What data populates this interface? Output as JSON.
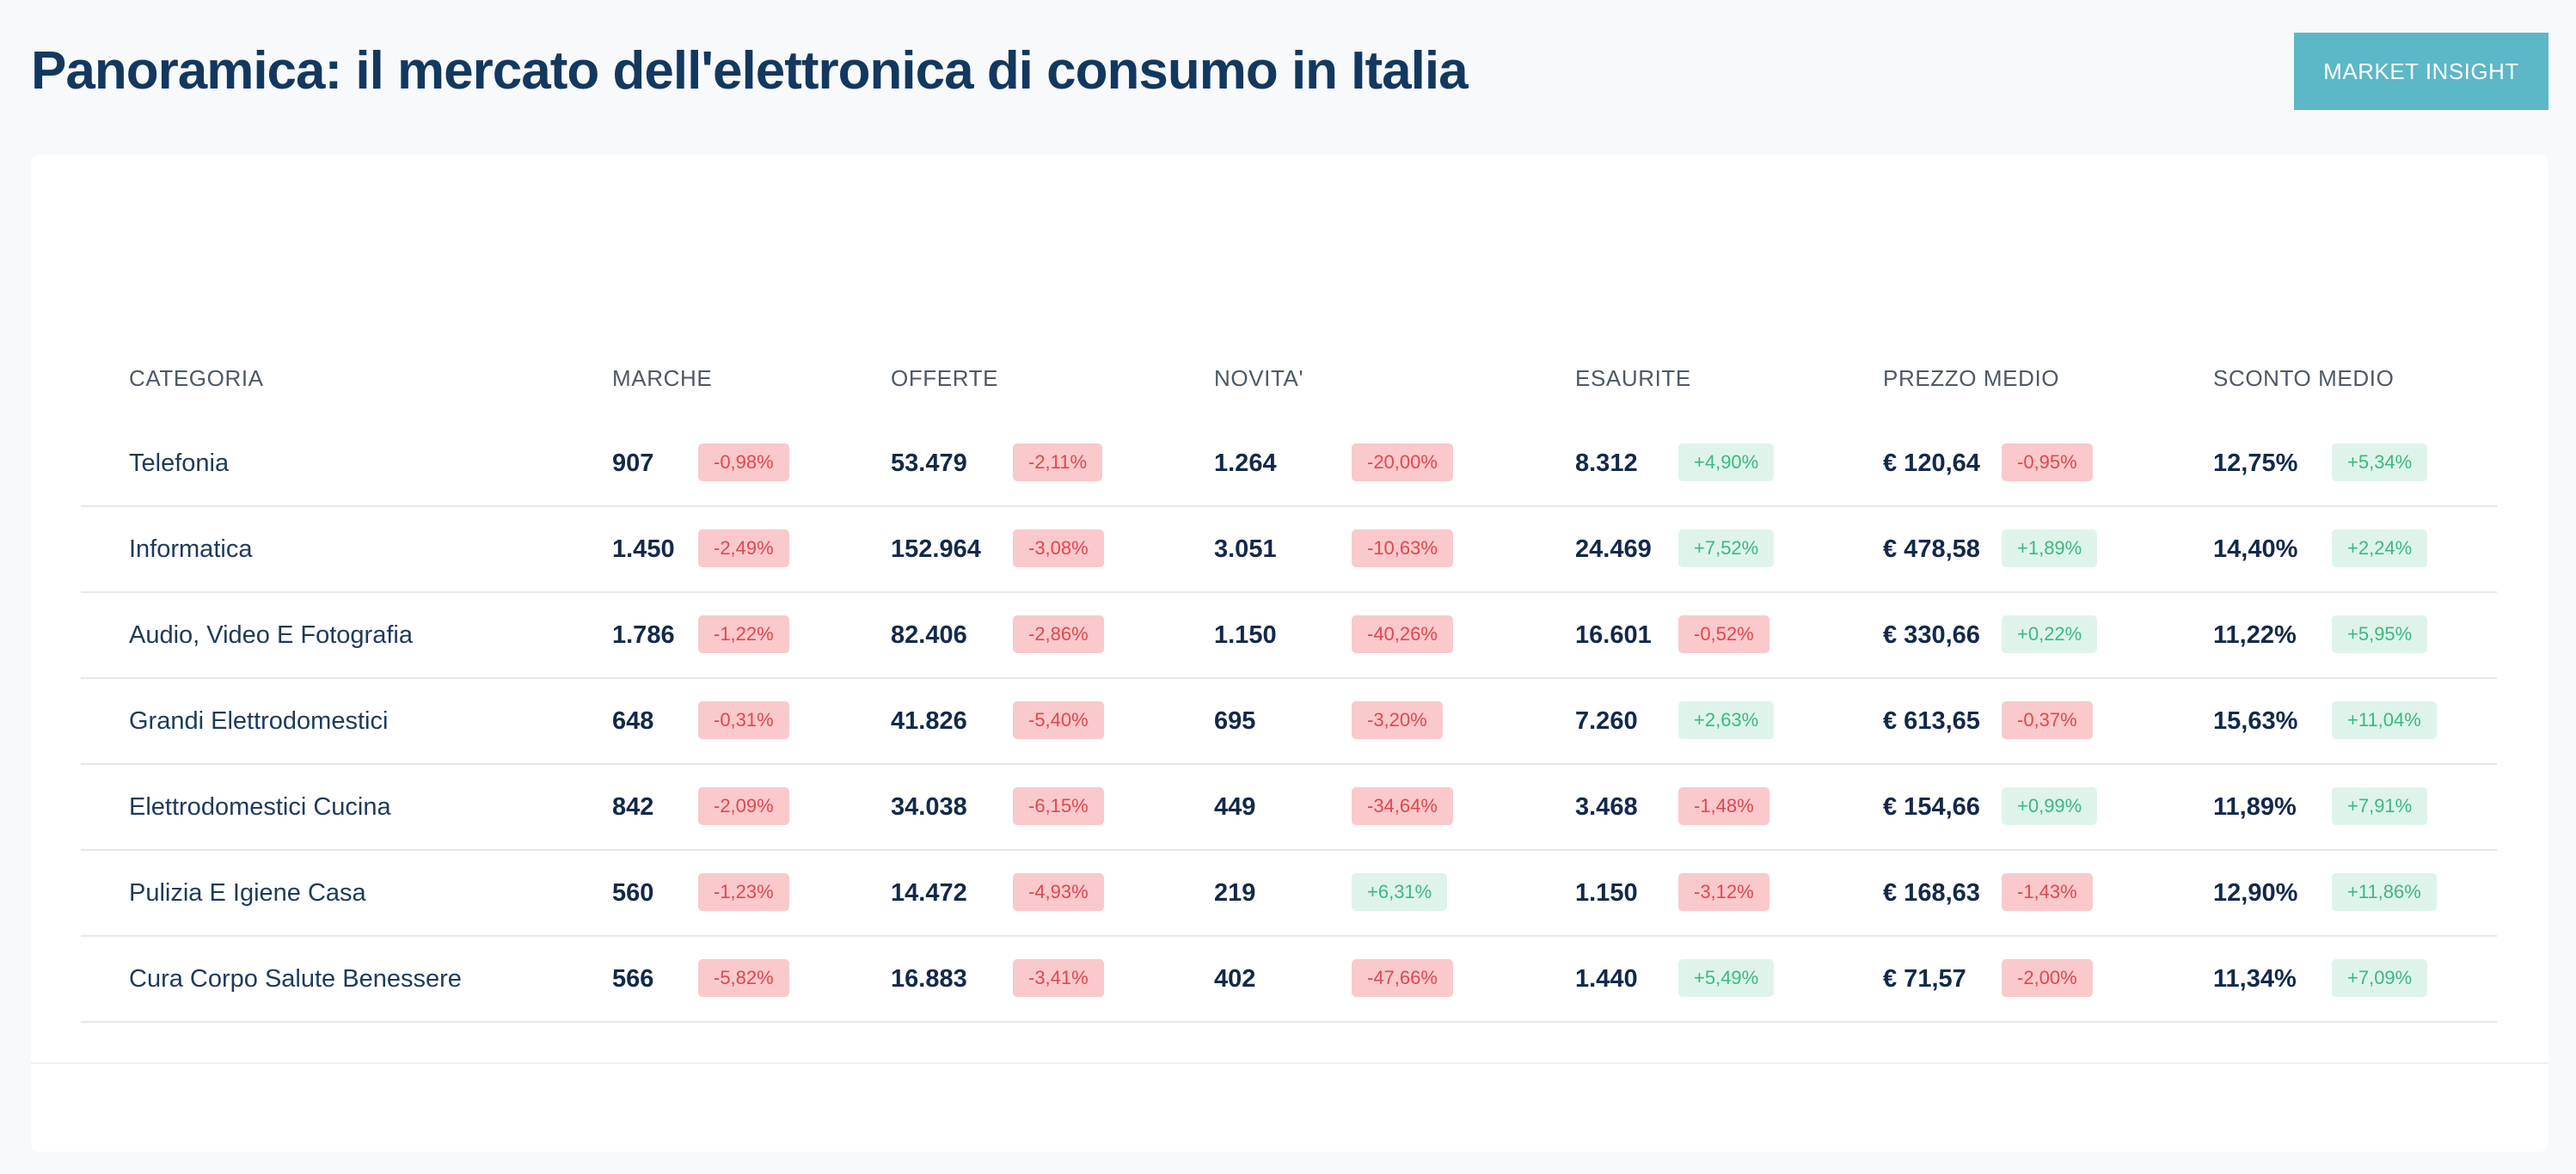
{
  "header": {
    "title": "Panoramica: il mercato dell'elettronica di consumo in Italia",
    "button_label": "MARKET INSIGHT"
  },
  "colors": {
    "title": "#13385f",
    "button": "#5cb7c7",
    "negative_bg": "#f9c9cc",
    "negative_text": "#e0474f",
    "positive_bg": "#def4ea",
    "positive_text": "#3cb882"
  },
  "table": {
    "columns": [
      "CATEGORIA",
      "MARCHE",
      "OFFERTE",
      "NOVITA'",
      "ESAURITE",
      "PREZZO MEDIO",
      "SCONTO MEDIO"
    ],
    "rows": [
      {
        "categoria": "Telefonia",
        "cells": [
          {
            "value": "907",
            "change": "-0,98%",
            "trend": "neg"
          },
          {
            "value": "53.479",
            "change": "-2,11%",
            "trend": "neg"
          },
          {
            "value": "1.264",
            "change": "-20,00%",
            "trend": "neg"
          },
          {
            "value": "8.312",
            "change": "+4,90%",
            "trend": "pos"
          },
          {
            "value": "€ 120,64",
            "change": "-0,95%",
            "trend": "neg"
          },
          {
            "value": "12,75%",
            "change": "+5,34%",
            "trend": "pos"
          }
        ]
      },
      {
        "categoria": "Informatica",
        "cells": [
          {
            "value": "1.450",
            "change": "-2,49%",
            "trend": "neg"
          },
          {
            "value": "152.964",
            "change": "-3,08%",
            "trend": "neg"
          },
          {
            "value": "3.051",
            "change": "-10,63%",
            "trend": "neg"
          },
          {
            "value": "24.469",
            "change": "+7,52%",
            "trend": "pos"
          },
          {
            "value": "€ 478,58",
            "change": "+1,89%",
            "trend": "pos"
          },
          {
            "value": "14,40%",
            "change": "+2,24%",
            "trend": "pos"
          }
        ]
      },
      {
        "categoria": "Audio, Video E Fotografia",
        "cells": [
          {
            "value": "1.786",
            "change": "-1,22%",
            "trend": "neg"
          },
          {
            "value": "82.406",
            "change": "-2,86%",
            "trend": "neg"
          },
          {
            "value": "1.150",
            "change": "-40,26%",
            "trend": "neg"
          },
          {
            "value": "16.601",
            "change": "-0,52%",
            "trend": "neg"
          },
          {
            "value": "€ 330,66",
            "change": "+0,22%",
            "trend": "pos"
          },
          {
            "value": "11,22%",
            "change": "+5,95%",
            "trend": "pos"
          }
        ]
      },
      {
        "categoria": "Grandi Elettrodomestici",
        "cells": [
          {
            "value": "648",
            "change": "-0,31%",
            "trend": "neg"
          },
          {
            "value": "41.826",
            "change": "-5,40%",
            "trend": "neg"
          },
          {
            "value": "695",
            "change": "-3,20%",
            "trend": "neg"
          },
          {
            "value": "7.260",
            "change": "+2,63%",
            "trend": "pos"
          },
          {
            "value": "€ 613,65",
            "change": "-0,37%",
            "trend": "neg"
          },
          {
            "value": "15,63%",
            "change": "+11,04%",
            "trend": "pos"
          }
        ]
      },
      {
        "categoria": "Elettrodomestici Cucina",
        "cells": [
          {
            "value": "842",
            "change": "-2,09%",
            "trend": "neg"
          },
          {
            "value": "34.038",
            "change": "-6,15%",
            "trend": "neg"
          },
          {
            "value": "449",
            "change": "-34,64%",
            "trend": "neg"
          },
          {
            "value": "3.468",
            "change": "-1,48%",
            "trend": "neg"
          },
          {
            "value": "€ 154,66",
            "change": "+0,99%",
            "trend": "pos"
          },
          {
            "value": "11,89%",
            "change": "+7,91%",
            "trend": "pos"
          }
        ]
      },
      {
        "categoria": "Pulizia E Igiene Casa",
        "cells": [
          {
            "value": "560",
            "change": "-1,23%",
            "trend": "neg"
          },
          {
            "value": "14.472",
            "change": "-4,93%",
            "trend": "neg"
          },
          {
            "value": "219",
            "change": "+6,31%",
            "trend": "pos"
          },
          {
            "value": "1.150",
            "change": "-3,12%",
            "trend": "neg"
          },
          {
            "value": "€ 168,63",
            "change": "-1,43%",
            "trend": "neg"
          },
          {
            "value": "12,90%",
            "change": "+11,86%",
            "trend": "pos"
          }
        ]
      },
      {
        "categoria": "Cura Corpo Salute Benessere",
        "cells": [
          {
            "value": "566",
            "change": "-5,82%",
            "trend": "neg"
          },
          {
            "value": "16.883",
            "change": "-3,41%",
            "trend": "neg"
          },
          {
            "value": "402",
            "change": "-47,66%",
            "trend": "neg"
          },
          {
            "value": "1.440",
            "change": "+5,49%",
            "trend": "pos"
          },
          {
            "value": "€ 71,57",
            "change": "-2,00%",
            "trend": "neg"
          },
          {
            "value": "11,34%",
            "change": "+7,09%",
            "trend": "pos"
          }
        ]
      }
    ]
  }
}
